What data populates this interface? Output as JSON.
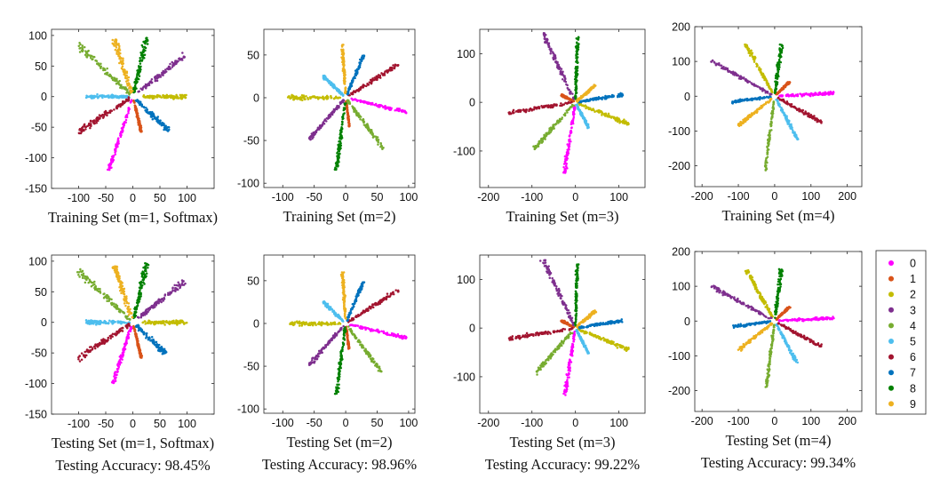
{
  "classes": [
    "0",
    "1",
    "2",
    "3",
    "4",
    "5",
    "6",
    "7",
    "8",
    "9"
  ],
  "colors": [
    "#ff00ff",
    "#d95319",
    "#c3bc00",
    "#7e2f8e",
    "#77ac30",
    "#4dbeee",
    "#a2142f",
    "#0072bd",
    "#008000",
    "#edb120"
  ],
  "chart_data": [
    {
      "type": "scatter",
      "row": "train",
      "title": "Training Set (m=1, Softmax)",
      "xlim": [
        -150,
        150
      ],
      "ylim": [
        -150,
        110
      ],
      "xticks": [
        -100,
        -50,
        0,
        50,
        100
      ],
      "yticks": [
        -150,
        -100,
        -50,
        0,
        50,
        100
      ],
      "rays": [
        {
          "cls": 0,
          "angle": 250,
          "r0": 6,
          "r1": 128,
          "w": 5
        },
        {
          "cls": 1,
          "angle": 285,
          "r0": 6,
          "r1": 60,
          "w": 3
        },
        {
          "cls": 2,
          "angle": 0,
          "r0": 18,
          "r1": 100,
          "w": 6
        },
        {
          "cls": 3,
          "angle": 35,
          "r0": 12,
          "r1": 116,
          "w": 7
        },
        {
          "cls": 4,
          "angle": 140,
          "r0": 6,
          "r1": 132,
          "w": 9
        },
        {
          "cls": 5,
          "angle": 180,
          "r0": 6,
          "r1": 86,
          "w": 5
        },
        {
          "cls": 6,
          "angle": 210,
          "r0": 6,
          "r1": 118,
          "w": 8
        },
        {
          "cls": 7,
          "angle": 320,
          "r0": 8,
          "r1": 86,
          "w": 7
        },
        {
          "cls": 8,
          "angle": 75,
          "r0": 6,
          "r1": 100,
          "w": 7
        },
        {
          "cls": 9,
          "angle": 110,
          "r0": 6,
          "r1": 100,
          "w": 8
        }
      ]
    },
    {
      "type": "scatter",
      "row": "train",
      "title": "Training Set (m=2)",
      "xlim": [
        -130,
        110
      ],
      "ylim": [
        -105,
        80
      ],
      "xticks": [
        -100,
        -50,
        0,
        50,
        100
      ],
      "yticks": [
        -100,
        -50,
        0,
        50
      ],
      "rays": [
        {
          "cls": 0,
          "angle": -10,
          "r0": 6,
          "r1": 98,
          "w": 4
        },
        {
          "cls": 1,
          "angle": 280,
          "r0": 4,
          "r1": 34,
          "w": 2
        },
        {
          "cls": 2,
          "angle": 180,
          "r0": 8,
          "r1": 92,
          "w": 5
        },
        {
          "cls": 3,
          "angle": 220,
          "r0": 4,
          "r1": 76,
          "w": 5
        },
        {
          "cls": 4,
          "angle": 315,
          "r0": 4,
          "r1": 84,
          "w": 5
        },
        {
          "cls": 5,
          "angle": 145,
          "r0": 4,
          "r1": 44,
          "w": 4
        },
        {
          "cls": 6,
          "angle": 25,
          "r0": 4,
          "r1": 92,
          "w": 5
        },
        {
          "cls": 7,
          "angle": 60,
          "r0": 4,
          "r1": 58,
          "w": 4
        },
        {
          "cls": 8,
          "angle": 260,
          "r0": 4,
          "r1": 86,
          "w": 5
        },
        {
          "cls": 9,
          "angle": 95,
          "r0": 4,
          "r1": 62,
          "w": 4
        }
      ]
    },
    {
      "type": "scatter",
      "row": "train",
      "title": "Training Set (m=3)",
      "xlim": [
        -220,
        160
      ],
      "ylim": [
        -175,
        150
      ],
      "xticks": [
        -200,
        -100,
        0,
        100
      ],
      "yticks": [
        -100,
        0,
        100
      ],
      "rays": [
        {
          "cls": 0,
          "angle": 260,
          "r0": 6,
          "r1": 148,
          "w": 5
        },
        {
          "cls": 1,
          "angle": 155,
          "r0": 4,
          "r1": 36,
          "w": 3
        },
        {
          "cls": 2,
          "angle": -20,
          "r0": 6,
          "r1": 132,
          "w": 5
        },
        {
          "cls": 3,
          "angle": 118,
          "r0": 6,
          "r1": 160,
          "w": 6
        },
        {
          "cls": 4,
          "angle": 225,
          "r0": 6,
          "r1": 135,
          "w": 5
        },
        {
          "cls": 5,
          "angle": 300,
          "r0": 4,
          "r1": 60,
          "w": 3
        },
        {
          "cls": 6,
          "angle": 188,
          "r0": 6,
          "r1": 155,
          "w": 5
        },
        {
          "cls": 7,
          "angle": 8,
          "r0": 6,
          "r1": 110,
          "w": 4
        },
        {
          "cls": 8,
          "angle": 88,
          "r0": 4,
          "r1": 136,
          "w": 4
        },
        {
          "cls": 9,
          "angle": 38,
          "r0": 4,
          "r1": 58,
          "w": 4
        }
      ]
    },
    {
      "type": "scatter",
      "row": "train",
      "title": "Training Set (m=4)",
      "xlim": [
        -220,
        240
      ],
      "ylim": [
        -260,
        200
      ],
      "xticks": [
        -200,
        -100,
        0,
        100,
        200
      ],
      "yticks": [
        -200,
        -100,
        0,
        100,
        200
      ],
      "rays": [
        {
          "cls": 0,
          "angle": 3,
          "r0": 10,
          "r1": 168,
          "w": 5
        },
        {
          "cls": 1,
          "angle": 45,
          "r0": 6,
          "r1": 58,
          "w": 3
        },
        {
          "cls": 2,
          "angle": 118,
          "r0": 10,
          "r1": 170,
          "w": 5
        },
        {
          "cls": 3,
          "angle": 150,
          "r0": 10,
          "r1": 205,
          "w": 5
        },
        {
          "cls": 4,
          "angle": 263,
          "r0": 10,
          "r1": 216,
          "w": 4
        },
        {
          "cls": 5,
          "angle": 297,
          "r0": 10,
          "r1": 140,
          "w": 4
        },
        {
          "cls": 6,
          "angle": 330,
          "r0": 10,
          "r1": 150,
          "w": 5
        },
        {
          "cls": 7,
          "angle": 188,
          "r0": 10,
          "r1": 120,
          "w": 4
        },
        {
          "cls": 8,
          "angle": 83,
          "r0": 8,
          "r1": 150,
          "w": 5
        },
        {
          "cls": 9,
          "angle": 220,
          "r0": 10,
          "r1": 132,
          "w": 5
        }
      ]
    },
    {
      "type": "scatter",
      "row": "test",
      "title": "Testing Set (m=1, Softmax)",
      "accuracy": "Testing Accuracy: 98.45%",
      "xlim": [
        -150,
        150
      ],
      "ylim": [
        -150,
        110
      ],
      "xticks": [
        -100,
        -50,
        0,
        50,
        100
      ],
      "yticks": [
        -150,
        -100,
        -50,
        0,
        50,
        100
      ],
      "rays": [
        {
          "cls": 0,
          "angle": 250,
          "r0": 6,
          "r1": 110,
          "w": 5
        },
        {
          "cls": 1,
          "angle": 285,
          "r0": 6,
          "r1": 60,
          "w": 3
        },
        {
          "cls": 2,
          "angle": 0,
          "r0": 18,
          "r1": 100,
          "w": 6
        },
        {
          "cls": 3,
          "angle": 35,
          "r0": 12,
          "r1": 116,
          "w": 7
        },
        {
          "cls": 4,
          "angle": 140,
          "r0": 6,
          "r1": 132,
          "w": 9
        },
        {
          "cls": 5,
          "angle": 180,
          "r0": 6,
          "r1": 86,
          "w": 5
        },
        {
          "cls": 6,
          "angle": 210,
          "r0": 6,
          "r1": 118,
          "w": 8
        },
        {
          "cls": 7,
          "angle": 320,
          "r0": 8,
          "r1": 80,
          "w": 7
        },
        {
          "cls": 8,
          "angle": 75,
          "r0": 6,
          "r1": 100,
          "w": 7
        },
        {
          "cls": 9,
          "angle": 110,
          "r0": 6,
          "r1": 100,
          "w": 8
        }
      ]
    },
    {
      "type": "scatter",
      "row": "test",
      "title": "Testing Set (m=2)",
      "accuracy": "Testing Accuracy: 98.96%",
      "xlim": [
        -130,
        110
      ],
      "ylim": [
        -105,
        80
      ],
      "xticks": [
        -100,
        -50,
        0,
        50,
        100
      ],
      "yticks": [
        -100,
        -50,
        0,
        50
      ],
      "rays": [
        {
          "cls": 0,
          "angle": -10,
          "r0": 6,
          "r1": 98,
          "w": 4
        },
        {
          "cls": 1,
          "angle": 280,
          "r0": 4,
          "r1": 30,
          "w": 2
        },
        {
          "cls": 2,
          "angle": 180,
          "r0": 8,
          "r1": 90,
          "w": 5
        },
        {
          "cls": 3,
          "angle": 220,
          "r0": 4,
          "r1": 76,
          "w": 5
        },
        {
          "cls": 4,
          "angle": 315,
          "r0": 4,
          "r1": 80,
          "w": 5
        },
        {
          "cls": 5,
          "angle": 145,
          "r0": 4,
          "r1": 44,
          "w": 4
        },
        {
          "cls": 6,
          "angle": 25,
          "r0": 4,
          "r1": 92,
          "w": 5
        },
        {
          "cls": 7,
          "angle": 60,
          "r0": 4,
          "r1": 58,
          "w": 4
        },
        {
          "cls": 8,
          "angle": 260,
          "r0": 4,
          "r1": 84,
          "w": 5
        },
        {
          "cls": 9,
          "angle": 95,
          "r0": 4,
          "r1": 60,
          "w": 4
        }
      ]
    },
    {
      "type": "scatter",
      "row": "test",
      "title": "Testing Set (m=3)",
      "accuracy": "Testing Accuracy: 99.22%",
      "xlim": [
        -220,
        160
      ],
      "ylim": [
        -175,
        150
      ],
      "xticks": [
        -200,
        -100,
        0,
        100
      ],
      "yticks": [
        -100,
        0,
        100
      ],
      "rays": [
        {
          "cls": 0,
          "angle": 260,
          "r0": 6,
          "r1": 140,
          "w": 5
        },
        {
          "cls": 1,
          "angle": 155,
          "r0": 4,
          "r1": 36,
          "w": 3
        },
        {
          "cls": 2,
          "angle": -20,
          "r0": 6,
          "r1": 132,
          "w": 5
        },
        {
          "cls": 3,
          "angle": 118,
          "r0": 6,
          "r1": 160,
          "w": 6
        },
        {
          "cls": 4,
          "angle": 225,
          "r0": 6,
          "r1": 130,
          "w": 5
        },
        {
          "cls": 5,
          "angle": 300,
          "r0": 4,
          "r1": 60,
          "w": 3
        },
        {
          "cls": 6,
          "angle": 188,
          "r0": 6,
          "r1": 155,
          "w": 5
        },
        {
          "cls": 7,
          "angle": 8,
          "r0": 6,
          "r1": 110,
          "w": 4
        },
        {
          "cls": 8,
          "angle": 88,
          "r0": 4,
          "r1": 132,
          "w": 4
        },
        {
          "cls": 9,
          "angle": 38,
          "r0": 4,
          "r1": 58,
          "w": 4
        }
      ]
    },
    {
      "type": "scatter",
      "row": "test",
      "title": "Testing Set (m=4)",
      "accuracy": "Testing Accuracy: 99.34%",
      "xlim": [
        -220,
        240
      ],
      "ylim": [
        -260,
        200
      ],
      "xticks": [
        -200,
        -100,
        0,
        100,
        200
      ],
      "yticks": [
        -200,
        -100,
        0,
        100,
        200
      ],
      "rays": [
        {
          "cls": 0,
          "angle": 3,
          "r0": 10,
          "r1": 165,
          "w": 5
        },
        {
          "cls": 1,
          "angle": 45,
          "r0": 6,
          "r1": 58,
          "w": 3
        },
        {
          "cls": 2,
          "angle": 118,
          "r0": 10,
          "r1": 165,
          "w": 5
        },
        {
          "cls": 3,
          "angle": 150,
          "r0": 10,
          "r1": 200,
          "w": 5
        },
        {
          "cls": 4,
          "angle": 263,
          "r0": 10,
          "r1": 195,
          "w": 4
        },
        {
          "cls": 5,
          "angle": 297,
          "r0": 10,
          "r1": 135,
          "w": 4
        },
        {
          "cls": 6,
          "angle": 330,
          "r0": 10,
          "r1": 150,
          "w": 5
        },
        {
          "cls": 7,
          "angle": 188,
          "r0": 10,
          "r1": 115,
          "w": 4
        },
        {
          "cls": 8,
          "angle": 83,
          "r0": 8,
          "r1": 150,
          "w": 5
        },
        {
          "cls": 9,
          "angle": 220,
          "r0": 10,
          "r1": 130,
          "w": 5
        }
      ]
    }
  ],
  "legend": {
    "position": "right",
    "labels": [
      "0",
      "1",
      "2",
      "3",
      "4",
      "5",
      "6",
      "7",
      "8",
      "9"
    ]
  }
}
